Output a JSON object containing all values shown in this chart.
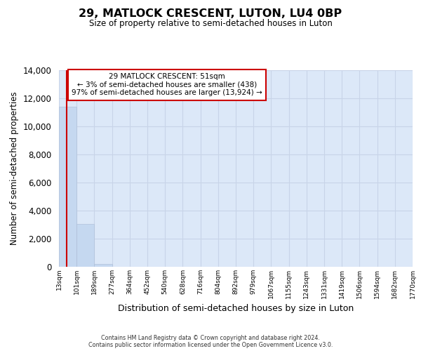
{
  "title": "29, MATLOCK CRESCENT, LUTON, LU4 0BP",
  "subtitle": "Size of property relative to semi-detached houses in Luton",
  "xlabel": "Distribution of semi-detached houses by size in Luton",
  "ylabel": "Number of semi-detached properties",
  "bar_values": [
    11400,
    3050,
    200,
    0,
    0,
    0,
    0,
    0,
    0,
    0,
    0,
    0,
    0,
    0,
    0,
    0,
    0,
    0,
    0,
    0
  ],
  "bar_color": "#c5d8f0",
  "grid_color": "#c8d4e8",
  "background_color": "#dce8f8",
  "x_labels": [
    "13sqm",
    "101sqm",
    "189sqm",
    "277sqm",
    "364sqm",
    "452sqm",
    "540sqm",
    "628sqm",
    "716sqm",
    "804sqm",
    "892sqm",
    "979sqm",
    "1067sqm",
    "1155sqm",
    "1243sqm",
    "1331sqm",
    "1419sqm",
    "1506sqm",
    "1594sqm",
    "1682sqm",
    "1770sqm"
  ],
  "ylim": [
    0,
    14000
  ],
  "yticks": [
    0,
    2000,
    4000,
    6000,
    8000,
    10000,
    12000,
    14000
  ],
  "property_line_color": "#cc0000",
  "annotation_line1": "29 MATLOCK CRESCENT: 51sqm",
  "annotation_line2": "← 3% of semi-detached houses are smaller (438)",
  "annotation_line3": "97% of semi-detached houses are larger (13,924) →",
  "annotation_box_color": "#cc0000",
  "footer_line1": "Contains HM Land Registry data © Crown copyright and database right 2024.",
  "footer_line2": "Contains public sector information licensed under the Open Government Licence v3.0."
}
